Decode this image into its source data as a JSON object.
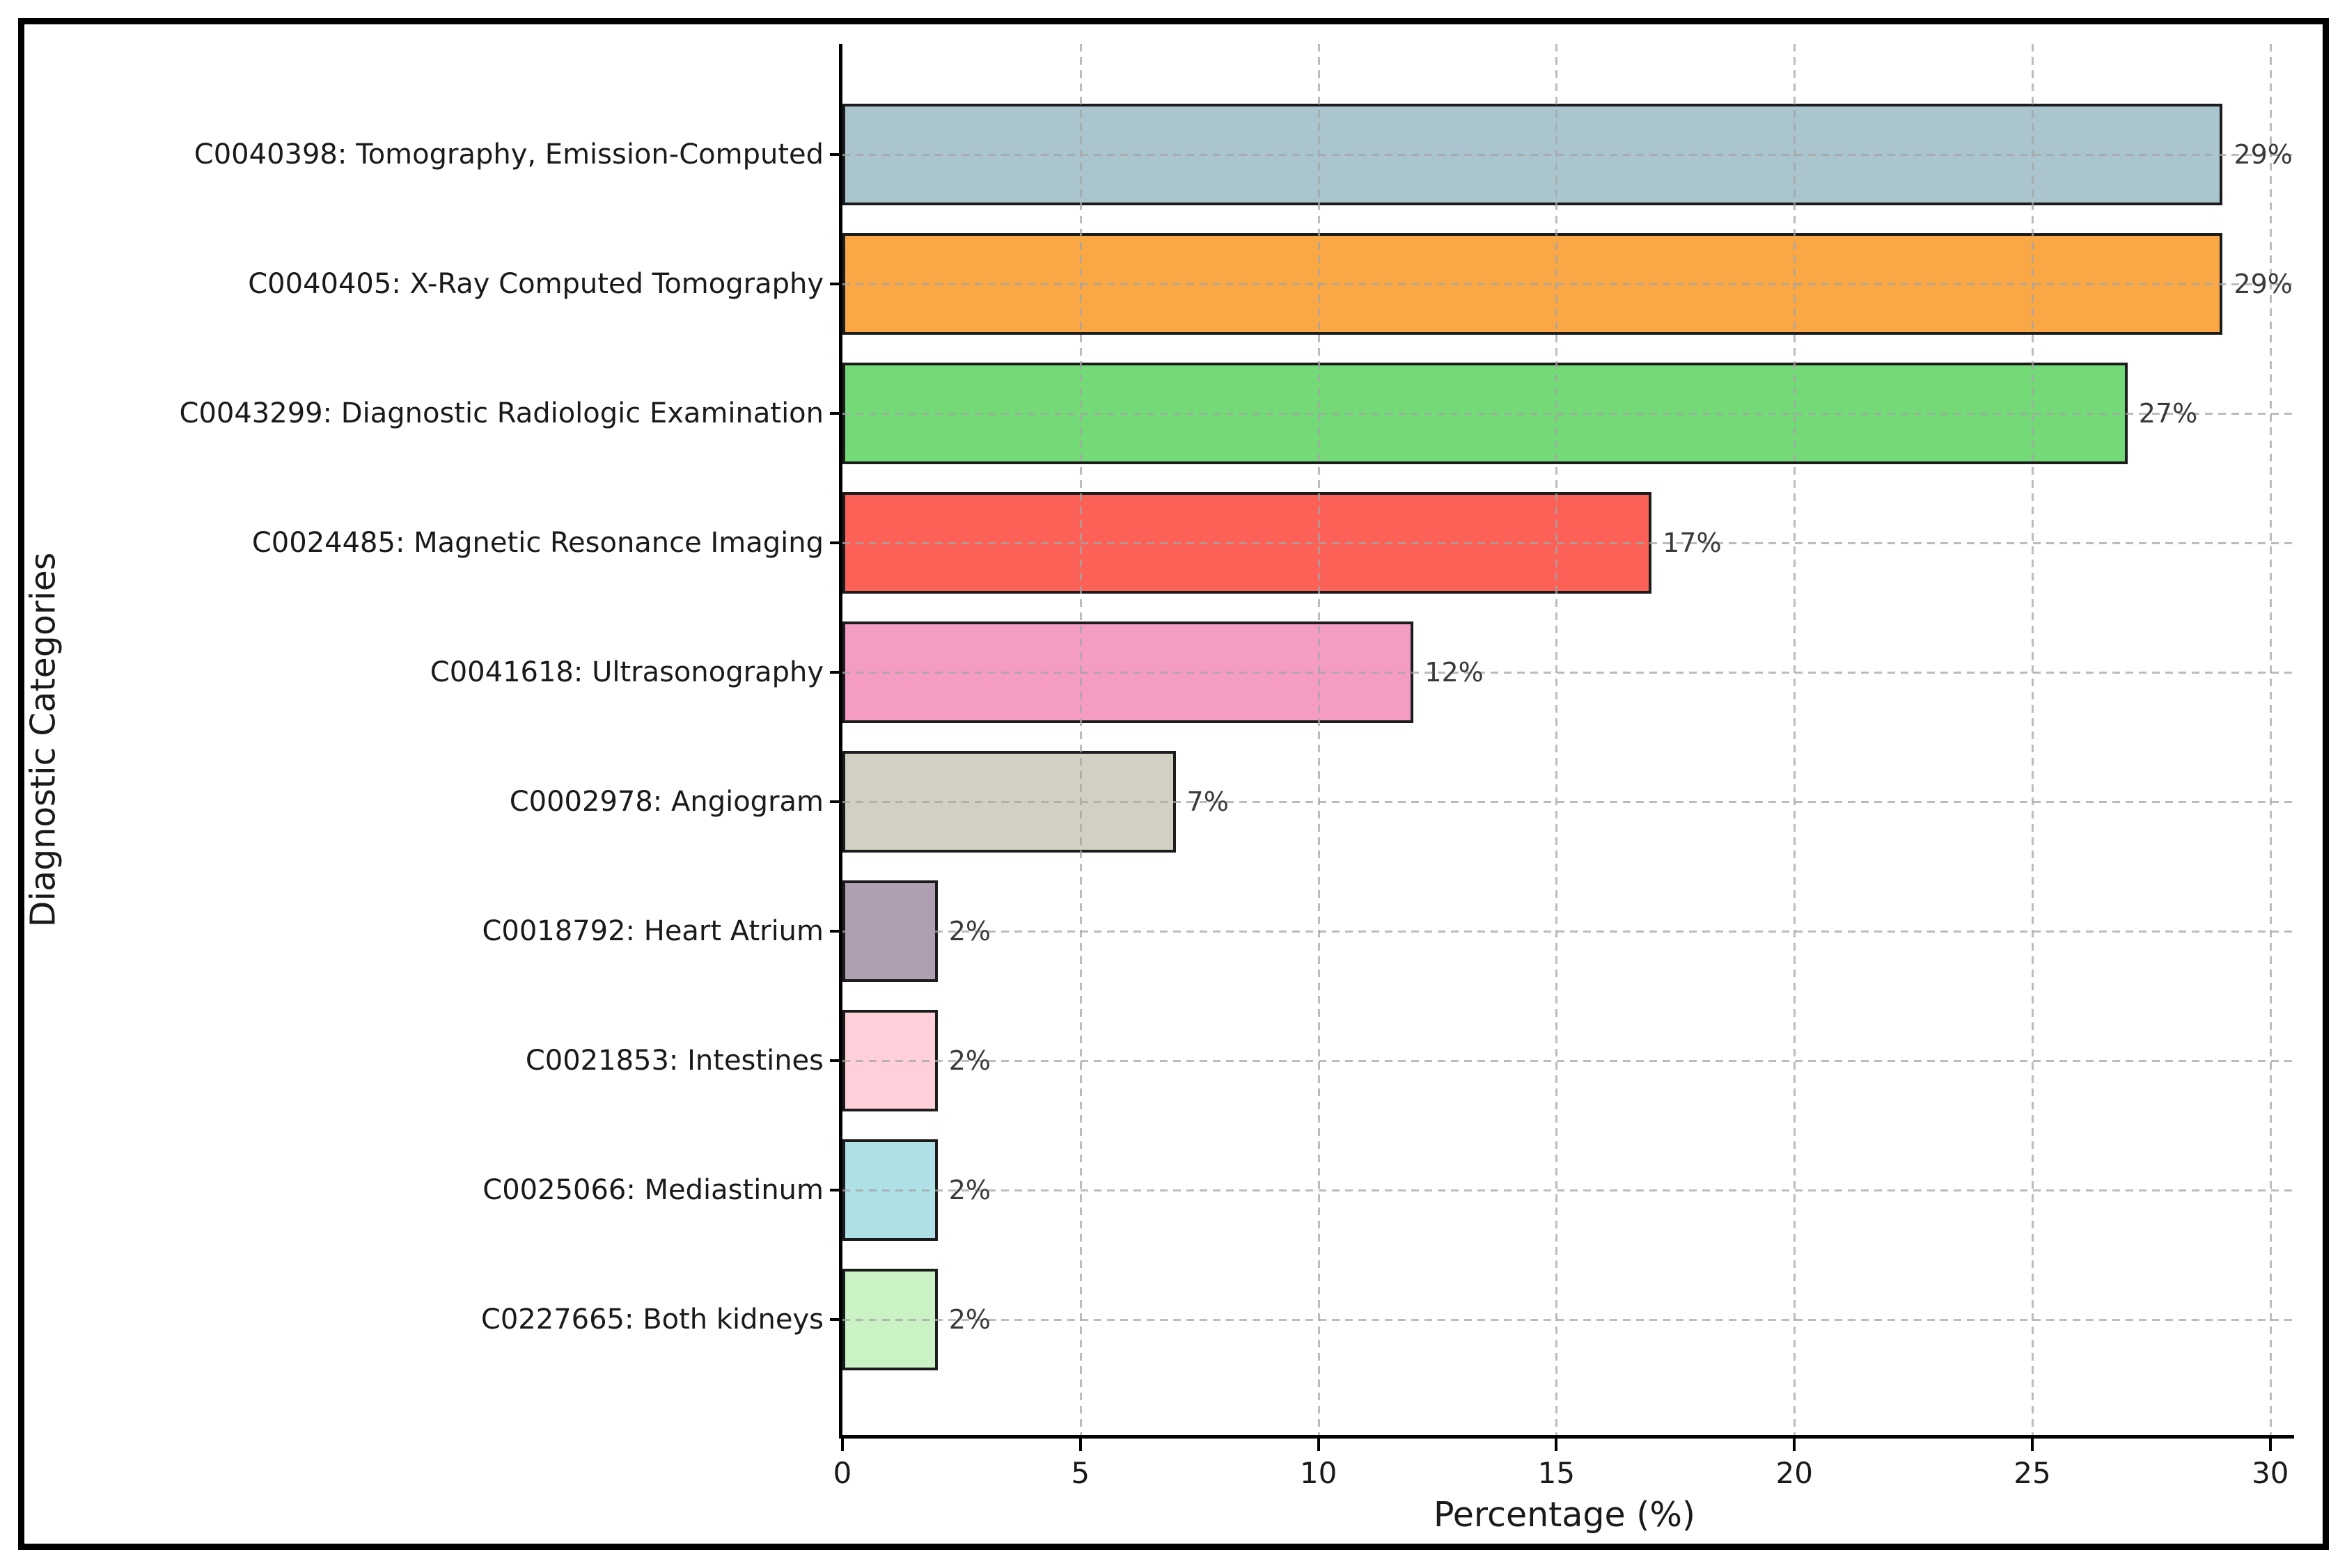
{
  "figure": {
    "background": "#ffffff",
    "frame_color": "#000000"
  },
  "chart_data": {
    "type": "bar",
    "orientation": "horizontal",
    "title": "",
    "xlabel": "Percentage (%)",
    "ylabel": "Diagnostic Categories",
    "categories": [
      "C0040398: Tomography, Emission-Computed",
      "C0040405: X-Ray Computed Tomography",
      "C0043299: Diagnostic Radiologic Examination",
      "C0024485: Magnetic Resonance Imaging",
      "C0041618: Ultrasonography",
      "C0002978: Angiogram",
      "C0018792: Heart Atrium",
      "C0021853: Intestines",
      "C0025066: Mediastinum",
      "C0227665: Both kidneys"
    ],
    "values": [
      29,
      29,
      27,
      17,
      12,
      7,
      2,
      2,
      2,
      2
    ],
    "value_labels": [
      "29%",
      "29%",
      "27%",
      "17%",
      "12%",
      "7%",
      "2%",
      "2%",
      "2%",
      "2%"
    ],
    "bar_colors": [
      "#ABC5CE",
      "#F9A845",
      "#74D977",
      "#FB6156",
      "#F59CC5",
      "#D2D0C3",
      "#B09EB2",
      "#FFD0DA",
      "#AEE0E6",
      "#CAF2C4"
    ],
    "bar_edge_color": "#1c1c1c",
    "xlim": [
      0,
      30.5
    ],
    "xticks": [
      0,
      5,
      10,
      15,
      20,
      25,
      30
    ],
    "xtick_labels": [
      "0",
      "5",
      "10",
      "15",
      "20",
      "25",
      "30"
    ],
    "grid": "dashed",
    "grid_color": "#a5a5a5",
    "legend": "none"
  }
}
